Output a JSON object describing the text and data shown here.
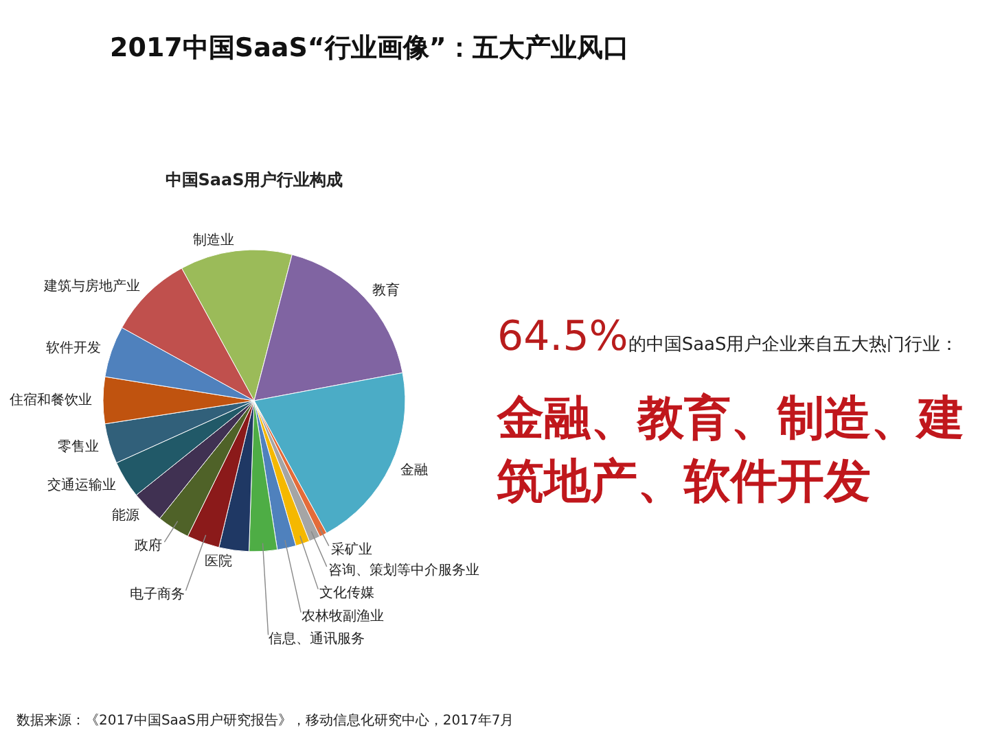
{
  "chart_data": {
    "type": "pie",
    "title": "2017中国SaaS“行业画像”：五大产业风口",
    "subtitle": "中国SaaS用户行业构成",
    "categories": [
      "制造业",
      "教育",
      "金融",
      "采矿业",
      "咨询、策划等中介服务业",
      "文化传媒",
      "农林牧副渔业",
      "信息、通讯服务",
      "医院",
      "电子商务",
      "政府",
      "能源",
      "交通运输业",
      "零售业",
      "住宿和餐饮业",
      "软件开发",
      "建筑与房地产业"
    ],
    "values": [
      12,
      18,
      20,
      0.8,
      1.2,
      1.5,
      2.0,
      3.0,
      3.2,
      3.5,
      3.5,
      3.5,
      4.0,
      4.3,
      5.0,
      5.5,
      9.0
    ],
    "colors": [
      "#9bbb59",
      "#8064a2",
      "#4bacc6",
      "#e46c3a",
      "#a5a5a5",
      "#f5b800",
      "#4f81bd",
      "#4ead45",
      "#1f3864",
      "#8b1a1a",
      "#4f6228",
      "#403152",
      "#215968",
      "#31607a",
      "#c0530f",
      "#4f81bd",
      "#c0504d"
    ],
    "annotations": [
      "64.5%的中国SaaS用户企业来自五大热门行业：",
      "金融、教育、制造、建筑地产、软件开发",
      "数据来源：《2017中国SaaS用户研究报告》，移动信息化研究中心，2017年7月"
    ]
  }
}
